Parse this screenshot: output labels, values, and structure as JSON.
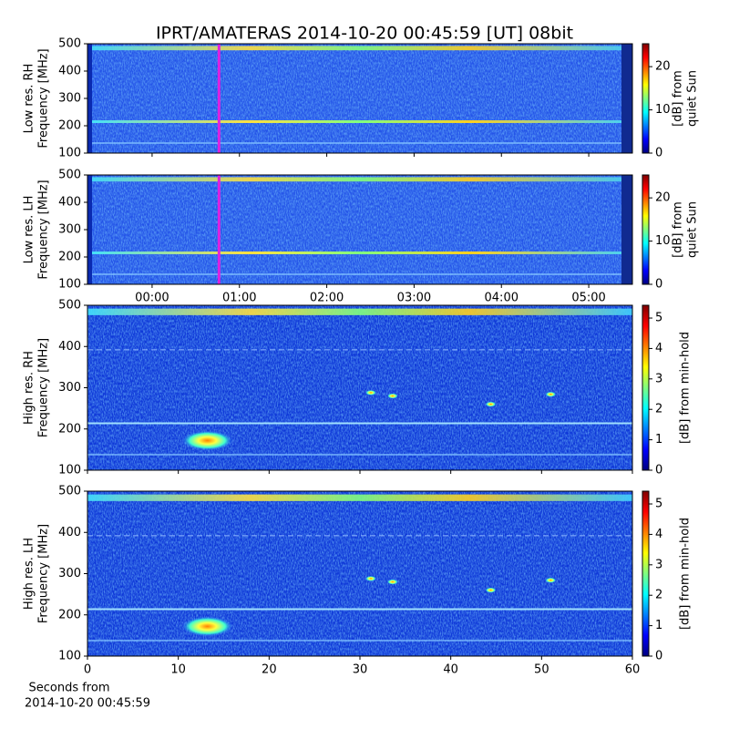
{
  "title": "IPRT/AMATERAS 2014-10-20 00:45:59 [UT]   08bit",
  "x_caption": [
    "Seconds from",
    "2014-10-20 00:45:59"
  ],
  "chart_data": [
    {
      "type": "spectrogram",
      "ylabel": [
        "Low res. RH",
        "Frequency [MHz]"
      ],
      "xlim": [
        -0.74,
        5.5
      ],
      "ylim": [
        100,
        500
      ],
      "yticks": [
        100,
        200,
        300,
        400,
        500
      ],
      "colormap": "jet",
      "clim": [
        0,
        25.3
      ],
      "cticks": [
        0,
        10,
        20
      ],
      "clabel": [
        "[dB] from",
        "quiet Sun"
      ],
      "marker": {
        "x": 0.766,
        "color": "#e020e0"
      }
    },
    {
      "type": "spectrogram",
      "ylabel": [
        "Low res. LH",
        "Frequency [MHz]"
      ],
      "xlim": [
        -0.74,
        5.5
      ],
      "xticks": [
        {
          "value": 0,
          "label": "00:00"
        },
        {
          "value": 1,
          "label": "01:00"
        },
        {
          "value": 2,
          "label": "02:00"
        },
        {
          "value": 3,
          "label": "03:00"
        },
        {
          "value": 4,
          "label": "04:00"
        },
        {
          "value": 5,
          "label": "05:00"
        }
      ],
      "ylim": [
        100,
        500
      ],
      "yticks": [
        100,
        200,
        300,
        400,
        500
      ],
      "colormap": "jet",
      "clim": [
        0,
        25.3
      ],
      "cticks": [
        0,
        10,
        20
      ],
      "clabel": [
        "[dB] from",
        "quiet Sun"
      ],
      "marker": {
        "x": 0.766,
        "color": "#e020e0"
      }
    },
    {
      "type": "spectrogram",
      "ylabel": [
        "High res. RH",
        "Frequency [MHz]"
      ],
      "xlim": [
        0,
        60
      ],
      "ylim": [
        100,
        500
      ],
      "yticks": [
        100,
        200,
        300,
        400,
        500
      ],
      "colormap": "jet",
      "clim": [
        0,
        5.42
      ],
      "cticks": [
        0,
        1,
        2,
        3,
        4,
        5
      ],
      "clabel": [
        "[dB] from min-hold"
      ]
    },
    {
      "type": "spectrogram",
      "ylabel": [
        "High res. LH",
        "Frequency [MHz]"
      ],
      "xlim": [
        0,
        60
      ],
      "xticks": [
        0,
        10,
        20,
        30,
        40,
        50,
        60
      ],
      "ylim": [
        100,
        500
      ],
      "yticks": [
        100,
        200,
        300,
        400,
        500
      ],
      "colormap": "jet",
      "clim": [
        0,
        5.42
      ],
      "cticks": [
        0,
        1,
        2,
        3,
        4,
        5
      ],
      "clabel": [
        "[dB] from min-hold"
      ]
    }
  ]
}
